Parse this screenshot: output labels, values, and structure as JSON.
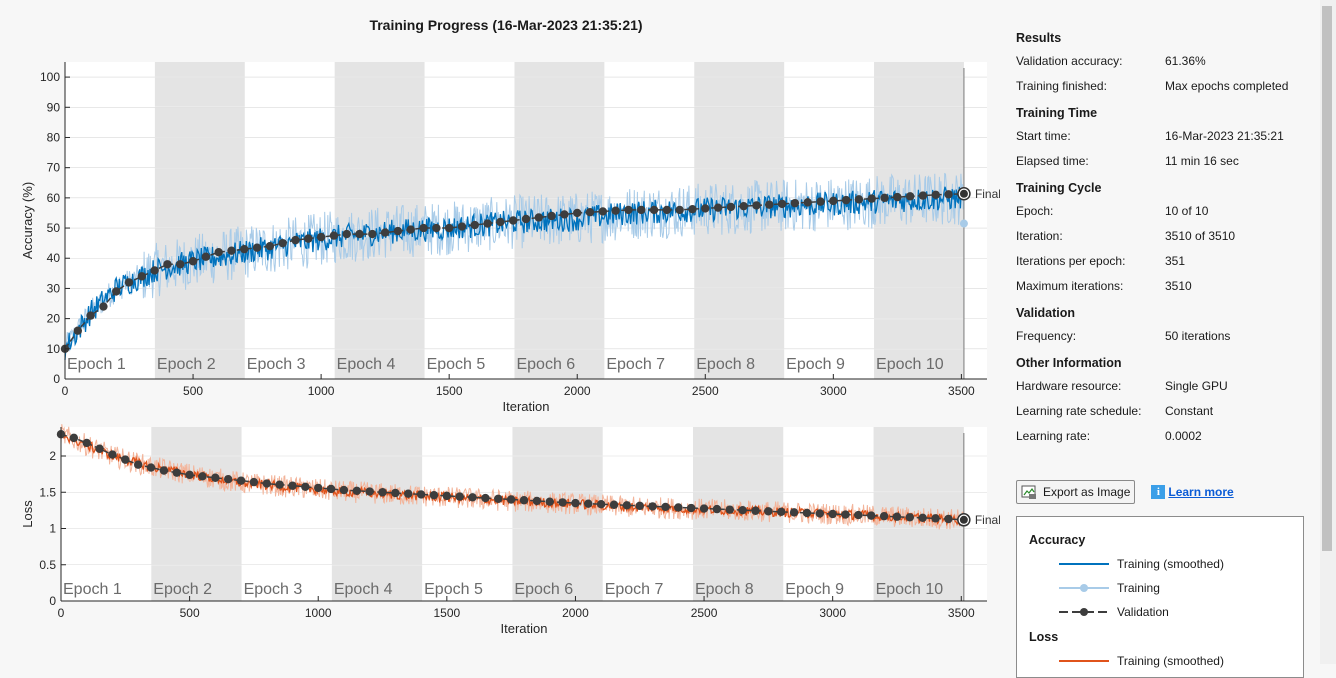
{
  "title": "Training Progress (16-Mar-2023 21:35:21)",
  "final_label": "Final",
  "epoch_labels": [
    "Epoch 1",
    "Epoch 2",
    "Epoch 3",
    "Epoch 4",
    "Epoch 5",
    "Epoch 6",
    "Epoch 7",
    "Epoch 8",
    "Epoch 9",
    "Epoch 10"
  ],
  "info": {
    "results_title": "Results",
    "validation_accuracy_label": "Validation accuracy:",
    "validation_accuracy": "61.36%",
    "training_finished_label": "Training finished:",
    "training_finished": "Max epochs completed",
    "time_title": "Training Time",
    "start_time_label": "Start time:",
    "start_time": "16-Mar-2023 21:35:21",
    "elapsed_label": "Elapsed time:",
    "elapsed": "11 min 16 sec",
    "cycle_title": "Training Cycle",
    "epoch_label": "Epoch:",
    "epoch": "10 of 10",
    "iteration_label": "Iteration:",
    "iteration": "3510 of 3510",
    "ipe_label": "Iterations per epoch:",
    "ipe": "351",
    "maxit_label": "Maximum iterations:",
    "maxit": "3510",
    "validation_title": "Validation",
    "frequency_label": "Frequency:",
    "frequency": "50 iterations",
    "other_title": "Other Information",
    "hardware_label": "Hardware resource:",
    "hardware": "Single GPU",
    "lrs_label": "Learning rate schedule:",
    "lrs": "Constant",
    "lr_label": "Learning rate:",
    "lr": "0.0002"
  },
  "buttons": {
    "export": "Export as Image",
    "learn_more": "Learn more"
  },
  "legend": {
    "accuracy_title": "Accuracy",
    "loss_title": "Loss",
    "items": [
      "Training (smoothed)",
      "Training",
      "Validation"
    ],
    "loss_first": "Training (smoothed)"
  },
  "colors": {
    "acc_smoothed": "#0072bd",
    "acc_raw": "#a8cbe8",
    "loss_smoothed": "#e0531b",
    "loss_raw": "#f3b49a",
    "validation": "#3d3d3d",
    "epoch_band": "#e4e4e4"
  },
  "chart_data": [
    {
      "type": "line",
      "xlabel": "Iteration",
      "ylabel": "Accuracy (%)",
      "xlim": [
        0,
        3600
      ],
      "ylim": [
        0,
        105
      ],
      "xticks": [
        0,
        500,
        1000,
        1500,
        2000,
        2500,
        3000,
        3500
      ],
      "yticks": [
        0,
        10,
        20,
        30,
        40,
        50,
        60,
        70,
        80,
        90,
        100
      ],
      "iterations_per_epoch": 351,
      "series": [
        {
          "name": "Training (smoothed)",
          "x": [
            0,
            100,
            200,
            351,
            500,
            702,
            900,
            1053,
            1300,
            1500,
            1755,
            2000,
            2200,
            2457,
            2700,
            3000,
            3200,
            3510
          ],
          "values": [
            10,
            22,
            30,
            36,
            39,
            42,
            45,
            47,
            49,
            50,
            52,
            53,
            55,
            56,
            57,
            58,
            59,
            60
          ]
        },
        {
          "name": "Validation",
          "x": [
            0,
            50,
            100,
            150,
            200,
            250,
            300,
            351,
            400,
            450,
            500,
            600,
            700,
            800,
            900,
            1000,
            1100,
            1200,
            1300,
            1400,
            1500,
            1600,
            1700,
            1800,
            1900,
            2000,
            2200,
            2400,
            2600,
            2800,
            3000,
            3200,
            3400,
            3510
          ],
          "values": [
            10,
            16,
            21,
            24,
            29,
            32,
            34,
            36,
            38,
            38,
            39,
            42,
            43,
            44,
            46,
            47,
            48,
            48,
            49,
            50,
            50,
            51,
            52,
            53,
            54,
            55,
            56,
            56,
            57,
            58,
            59,
            60,
            61,
            61.36
          ]
        }
      ],
      "final_validation": 61.36,
      "final_training": 51.5
    },
    {
      "type": "line",
      "xlabel": "Iteration",
      "ylabel": "Loss",
      "xlim": [
        0,
        3600
      ],
      "ylim": [
        0,
        2.4
      ],
      "xticks": [
        0,
        500,
        1000,
        1500,
        2000,
        2500,
        3000,
        3500
      ],
      "yticks": [
        0,
        0.5,
        1,
        1.5,
        2
      ],
      "yticklabels": [
        "0",
        "0.5",
        "1",
        "1.5",
        "2"
      ],
      "iterations_per_epoch": 351,
      "series": [
        {
          "name": "Training (smoothed)",
          "x": [
            0,
            100,
            200,
            351,
            500,
            702,
            900,
            1053,
            1300,
            1500,
            1755,
            2000,
            2200,
            2457,
            2700,
            3000,
            3200,
            3510
          ],
          "values": [
            2.3,
            2.15,
            2.0,
            1.85,
            1.75,
            1.63,
            1.57,
            1.52,
            1.47,
            1.43,
            1.38,
            1.34,
            1.3,
            1.27,
            1.24,
            1.2,
            1.17,
            1.12
          ]
        },
        {
          "name": "Validation",
          "x": [
            0,
            50,
            100,
            150,
            200,
            250,
            300,
            351,
            400,
            450,
            500,
            600,
            700,
            800,
            900,
            1000,
            1100,
            1200,
            1300,
            1400,
            1500,
            1600,
            1700,
            1800,
            1900,
            2000,
            2200,
            2400,
            2600,
            2800,
            3000,
            3200,
            3400,
            3510
          ],
          "values": [
            2.3,
            2.25,
            2.18,
            2.1,
            2.02,
            1.95,
            1.88,
            1.84,
            1.8,
            1.77,
            1.74,
            1.7,
            1.66,
            1.62,
            1.59,
            1.56,
            1.53,
            1.51,
            1.49,
            1.47,
            1.45,
            1.43,
            1.41,
            1.39,
            1.37,
            1.35,
            1.32,
            1.29,
            1.26,
            1.23,
            1.2,
            1.17,
            1.14,
            1.12
          ]
        }
      ],
      "final_validation": 1.12
    }
  ]
}
